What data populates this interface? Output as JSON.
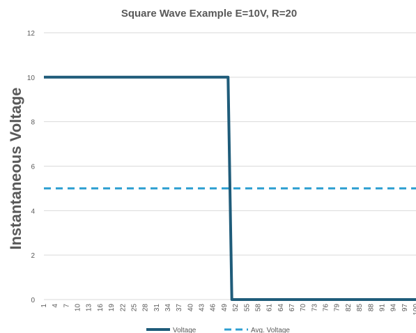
{
  "chart_data": {
    "type": "line",
    "title": "Square Wave  Example E=10V, R=20",
    "xlabel": "",
    "ylabel": "Instantaneous Voltage",
    "xlim": [
      1,
      100
    ],
    "ylim": [
      0,
      12
    ],
    "y_ticks": [
      0,
      2,
      4,
      6,
      8,
      10,
      12
    ],
    "x_ticks": [
      1,
      4,
      7,
      10,
      13,
      16,
      19,
      22,
      25,
      28,
      31,
      34,
      37,
      40,
      43,
      46,
      49,
      52,
      55,
      58,
      61,
      64,
      67,
      70,
      73,
      76,
      79,
      82,
      85,
      88,
      91,
      94,
      97,
      100
    ],
    "grid": true,
    "legend_position": "bottom",
    "series": [
      {
        "name": "Voltage",
        "style": "solid",
        "color": "#1f5c7a",
        "x": [
          1,
          50,
          51,
          100
        ],
        "y": [
          10,
          10,
          0,
          0
        ]
      },
      {
        "name": "Avg. Voltage",
        "style": "dashed",
        "color": "#2e9fd1",
        "x": [
          1,
          100
        ],
        "y": [
          5,
          5
        ]
      }
    ]
  }
}
